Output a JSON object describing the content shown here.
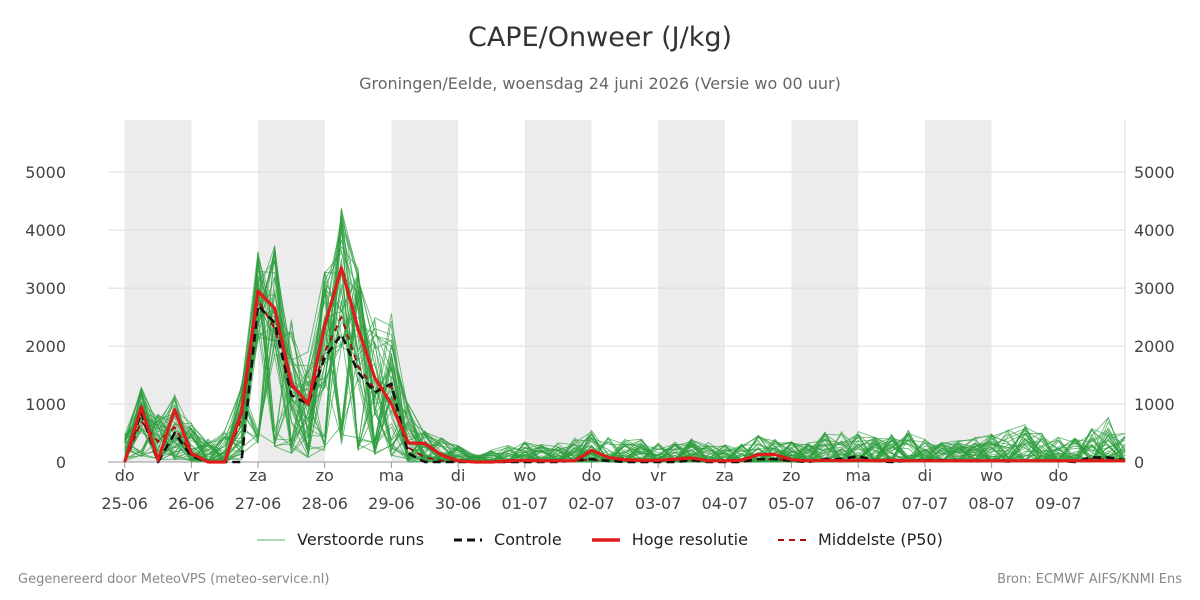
{
  "colors": {
    "ensemble": "#2e9e3e",
    "control": "#111111",
    "highres": "#e01b1b",
    "median": "#a01010",
    "shade": "#ececec",
    "grid": "#dddddd"
  },
  "chart_data": {
    "type": "line",
    "title": "CAPE/Onweer (J/kg)",
    "subtitle": "Groningen/Eelde, woensdag 24 juni 2026 (Versie wo 00 uur)",
    "ylim": [
      0,
      5900
    ],
    "y_ticks": [
      0,
      1000,
      2000,
      3000,
      4000,
      5000
    ],
    "x_ticks": [
      {
        "day": "do",
        "date": "25-06"
      },
      {
        "day": "vr",
        "date": "26-06"
      },
      {
        "day": "za",
        "date": "27-06"
      },
      {
        "day": "zo",
        "date": "28-06"
      },
      {
        "day": "ma",
        "date": "29-06"
      },
      {
        "day": "di",
        "date": "30-06"
      },
      {
        "day": "wo",
        "date": "01-07"
      },
      {
        "day": "do",
        "date": "02-07"
      },
      {
        "day": "vr",
        "date": "03-07"
      },
      {
        "day": "za",
        "date": "04-07"
      },
      {
        "day": "zo",
        "date": "05-07"
      },
      {
        "day": "ma",
        "date": "06-07"
      },
      {
        "day": "di",
        "date": "07-07"
      },
      {
        "day": "wo",
        "date": "08-07"
      },
      {
        "day": "do",
        "date": "09-07"
      }
    ],
    "x_days": [
      0,
      0.25,
      0.5,
      0.75,
      1,
      1.25,
      1.5,
      1.75,
      2,
      2.25,
      2.5,
      2.75,
      3,
      3.25,
      3.5,
      3.75,
      4,
      4.25,
      4.5,
      4.75,
      5,
      5.25,
      5.5,
      5.75,
      6,
      6.25,
      6.5,
      6.75,
      7,
      7.25,
      7.5,
      7.75,
      8,
      8.25,
      8.5,
      8.75,
      9,
      9.25,
      9.5,
      9.75,
      10,
      10.25,
      10.5,
      10.75,
      11,
      11.25,
      11.5,
      11.75,
      12,
      12.25,
      12.5,
      12.75,
      13,
      13.25,
      13.5,
      13.75,
      14,
      14.25,
      14.5,
      14.75,
      15
    ],
    "series": [
      {
        "name": "Hoge resolutie",
        "style": "highres",
        "values": [
          0,
          950,
          30,
          900,
          150,
          0,
          0,
          850,
          2950,
          2650,
          1350,
          1000,
          2350,
          3350,
          2300,
          1450,
          1000,
          330,
          320,
          120,
          20,
          0,
          0,
          20,
          30,
          20,
          20,
          20,
          200,
          80,
          40,
          30,
          30,
          50,
          70,
          20,
          20,
          30,
          130,
          130,
          40,
          20,
          30,
          20,
          30,
          20,
          30,
          20,
          20,
          20,
          20,
          20,
          20,
          20,
          20,
          20,
          20,
          20,
          20,
          20,
          20
        ]
      },
      {
        "name": "Controle",
        "style": "control",
        "values": [
          0,
          850,
          0,
          500,
          100,
          0,
          0,
          0,
          2700,
          2400,
          1150,
          1000,
          1800,
          2200,
          1550,
          1200,
          1350,
          150,
          0,
          0,
          0,
          0,
          0,
          0,
          0,
          0,
          0,
          30,
          50,
          20,
          0,
          0,
          0,
          0,
          30,
          0,
          0,
          0,
          50,
          50,
          20,
          0,
          50,
          50,
          100,
          20,
          0,
          20,
          30,
          30,
          20,
          10,
          20,
          10,
          20,
          20,
          20,
          0,
          80,
          80,
          30
        ]
      },
      {
        "name": "Middelste (P50)",
        "style": "median",
        "values": [
          0,
          700,
          350,
          600,
          120,
          0,
          0,
          750,
          2800,
          2300,
          1300,
          1050,
          1900,
          2500,
          1650,
          1250,
          1300,
          250,
          80,
          20,
          0,
          0,
          0,
          0,
          20,
          20,
          20,
          20,
          40,
          20,
          20,
          20,
          20,
          20,
          30,
          20,
          20,
          20,
          50,
          50,
          30,
          20,
          30,
          20,
          30,
          20,
          20,
          20,
          20,
          20,
          20,
          20,
          20,
          20,
          20,
          20,
          20,
          20,
          50,
          50,
          20
        ]
      }
    ],
    "ensemble": {
      "name": "Verstoorde runs",
      "members": 50,
      "mean": [
        250,
        900,
        450,
        700,
        350,
        120,
        150,
        800,
        2900,
        2800,
        1600,
        1200,
        2300,
        3200,
        2300,
        1700,
        1600,
        500,
        250,
        200,
        120,
        40,
        60,
        100,
        120,
        100,
        120,
        150,
        220,
        150,
        150,
        150,
        120,
        130,
        150,
        120,
        100,
        110,
        180,
        150,
        130,
        120,
        180,
        200,
        200,
        150,
        170,
        200,
        150,
        120,
        130,
        150,
        170,
        180,
        200,
        170,
        160,
        160,
        200,
        220,
        150
      ],
      "spread": [
        200,
        350,
        350,
        400,
        300,
        250,
        350,
        500,
        700,
        900,
        800,
        700,
        900,
        1100,
        900,
        800,
        900,
        450,
        250,
        200,
        150,
        80,
        130,
        170,
        200,
        180,
        200,
        250,
        300,
        250,
        220,
        220,
        200,
        200,
        220,
        200,
        180,
        200,
        250,
        220,
        200,
        200,
        300,
        320,
        300,
        250,
        270,
        300,
        220,
        200,
        220,
        250,
        280,
        330,
        400,
        300,
        250,
        250,
        350,
        500,
        300
      ]
    },
    "legend": [
      "Verstoorde runs",
      "Controle",
      "Hoge resolutie",
      "Middelste (P50)"
    ],
    "legend_position": "bottom",
    "grid": true
  },
  "footer": {
    "left": "Gegenereerd door MeteoVPS (meteo-service.nl)",
    "right": "Bron: ECMWF AIFS/KNMI Ens"
  }
}
